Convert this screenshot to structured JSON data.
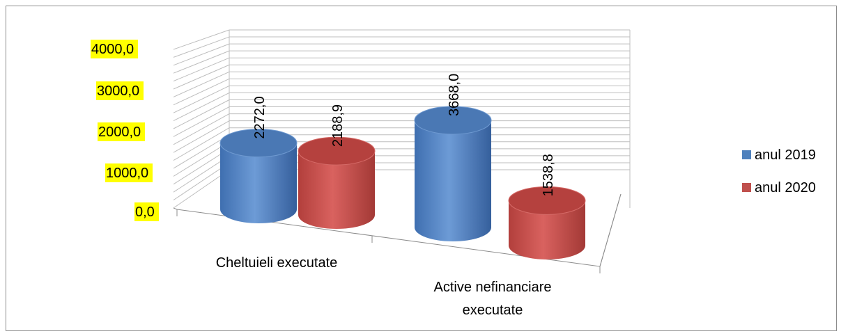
{
  "chart_data": {
    "type": "bar",
    "style": "3d-cylinder",
    "categories": [
      "Cheltuieli executate",
      "Active  nefinanciare executate"
    ],
    "series": [
      {
        "name": "anul 2019",
        "values": [
          2272.0,
          3668.0
        ],
        "labels": [
          "2272,0",
          "3668,0"
        ],
        "color": "#4f81bd"
      },
      {
        "name": "anul 2020",
        "values": [
          2188.9,
          1538.8
        ],
        "labels": [
          "2188,9",
          "1538,8"
        ],
        "color": "#c0504d"
      }
    ],
    "yticks": [
      "0,0",
      "1000,0",
      "2000,0",
      "3000,0",
      "4000,0"
    ],
    "ylim": [
      0,
      4000
    ],
    "ytick_highlight": "#ffff00",
    "grid": true,
    "legend": "right",
    "title": "",
    "xlabel": "",
    "ylabel": ""
  }
}
